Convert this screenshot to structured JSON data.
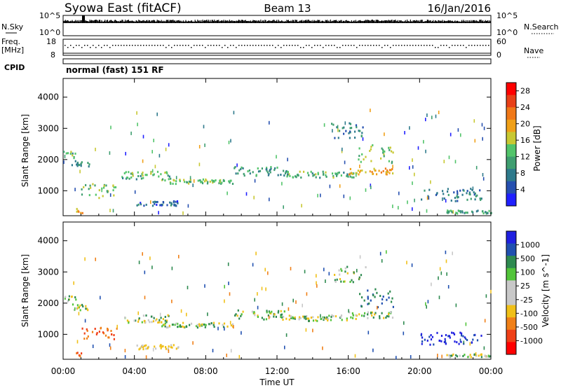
{
  "header": {
    "station": "Syowa East (fitACF)",
    "beam": "Beam 13",
    "date": "16/Jan/2016"
  },
  "status_panel": {
    "nsky_label": "N.Sky",
    "nsearch_label": "N.Search",
    "freq_label_1": "Freq.",
    "freq_label_2": "[MHz]",
    "nave_label": "Nave",
    "cpid_label": "CPID",
    "cpid_text": "normal (fast) 151 RF",
    "noise_ticks": [
      "10^5",
      "10^0"
    ],
    "freq_ticks": [
      "18",
      "8"
    ],
    "nave_ticks": [
      "60",
      "0"
    ]
  },
  "colors": {
    "power_scale": [
      "#2020ff",
      "#2650b0",
      "#2e7a8c",
      "#3f9e70",
      "#52c46a",
      "#c8c832",
      "#f0a018",
      "#f07818",
      "#e84018",
      "#ff0000"
    ],
    "velocity_scale": [
      "#2020e0",
      "#2050b0",
      "#2e8a50",
      "#52c43a",
      "#c8c8c8",
      "#c8c8c8",
      "#f0c018",
      "#f08018",
      "#f04018",
      "#ff0000"
    ]
  },
  "chart_data": [
    {
      "type": "heatmap",
      "name": "power",
      "xlabel": "",
      "ylabel": "Slant Range [km]",
      "xlim": [
        0,
        24
      ],
      "ylim": [
        200,
        4600
      ],
      "x_ticks": [
        "00:00",
        "04:00",
        "08:00",
        "12:00",
        "16:00",
        "20:00",
        "00:00"
      ],
      "y_ticks": [
        1000,
        2000,
        3000,
        4000
      ],
      "colorbar_label": "Power [dB]",
      "colorbar_ticks": [
        "4",
        "8",
        "12",
        "16",
        "20",
        "24",
        "28"
      ],
      "grid": false,
      "features": [
        {
          "t0": 0.0,
          "t1": 0.7,
          "r0": 2050,
          "r1": 2300,
          "v": 12
        },
        {
          "t0": 0.4,
          "t1": 1.5,
          "r0": 1800,
          "r1": 2000,
          "v": 8
        },
        {
          "t0": 0.7,
          "t1": 1.1,
          "r0": 300,
          "r1": 450,
          "v": 20
        },
        {
          "t0": 1.0,
          "t1": 3.0,
          "r0": 800,
          "r1": 1250,
          "v": 14
        },
        {
          "t0": 3.2,
          "t1": 6.0,
          "r0": 1400,
          "r1": 1650,
          "v": 12
        },
        {
          "t0": 4.0,
          "t1": 6.5,
          "r0": 550,
          "r1": 700,
          "v": 6
        },
        {
          "t0": 5.5,
          "t1": 9.5,
          "r0": 1250,
          "r1": 1400,
          "v": 14
        },
        {
          "t0": 9.5,
          "t1": 12.5,
          "r0": 1500,
          "r1": 1800,
          "v": 10
        },
        {
          "t0": 12.5,
          "t1": 16.5,
          "r0": 1450,
          "r1": 1650,
          "v": 12
        },
        {
          "t0": 16.0,
          "t1": 18.5,
          "r0": 1550,
          "r1": 1750,
          "v": 20
        },
        {
          "t0": 16.5,
          "t1": 18.5,
          "r0": 1900,
          "r1": 2500,
          "v": 14
        },
        {
          "t0": 15.0,
          "t1": 17.0,
          "r0": 2700,
          "r1": 3200,
          "v": 8
        },
        {
          "t0": 20.0,
          "t1": 23.5,
          "r0": 700,
          "r1": 1100,
          "v": 8
        },
        {
          "t0": 21.5,
          "t1": 24.0,
          "r0": 300,
          "r1": 400,
          "v": 10
        }
      ]
    },
    {
      "type": "heatmap",
      "name": "velocity",
      "xlabel": "Time UT",
      "ylabel": "Slant Range [km]",
      "xlim": [
        0,
        24
      ],
      "ylim": [
        200,
        4600
      ],
      "x_ticks": [
        "00:00",
        "04:00",
        "08:00",
        "12:00",
        "16:00",
        "20:00",
        "00:00"
      ],
      "y_ticks": [
        1000,
        2000,
        3000,
        4000
      ],
      "colorbar_label": "Velocity [m s^-1]",
      "colorbar_ticks": [
        "1000",
        "500",
        "100",
        "25",
        "-25",
        "-100",
        "-500",
        "-1000"
      ],
      "grid": false,
      "features": [
        {
          "t0": 0.0,
          "t1": 0.7,
          "r0": 2050,
          "r1": 2300,
          "v": 0
        },
        {
          "t0": 0.4,
          "t1": 1.5,
          "r0": 1800,
          "r1": 2000,
          "v": 0
        },
        {
          "t0": 0.7,
          "t1": 1.1,
          "r0": 300,
          "r1": 450,
          "v": -800
        },
        {
          "t0": 1.0,
          "t1": 3.0,
          "r0": 800,
          "r1": 1250,
          "v": -700
        },
        {
          "t0": 3.2,
          "t1": 6.0,
          "r0": 1400,
          "r1": 1650,
          "v": 0
        },
        {
          "t0": 4.0,
          "t1": 6.5,
          "r0": 550,
          "r1": 700,
          "v": -150
        },
        {
          "t0": 5.5,
          "t1": 9.5,
          "r0": 1250,
          "r1": 1400,
          "v": 0
        },
        {
          "t0": 9.5,
          "t1": 12.5,
          "r0": 1500,
          "r1": 1800,
          "v": 0
        },
        {
          "t0": 12.5,
          "t1": 16.5,
          "r0": 1450,
          "r1": 1650,
          "v": 0
        },
        {
          "t0": 16.0,
          "t1": 18.5,
          "r0": 1550,
          "r1": 1750,
          "v": 0
        },
        {
          "t0": 16.5,
          "t1": 18.5,
          "r0": 1900,
          "r1": 2500,
          "v": 300
        },
        {
          "t0": 15.0,
          "t1": 17.0,
          "r0": 2700,
          "r1": 3200,
          "v": 0
        },
        {
          "t0": 20.0,
          "t1": 23.5,
          "r0": 700,
          "r1": 1100,
          "v": 800
        },
        {
          "t0": 21.5,
          "t1": 24.0,
          "r0": 300,
          "r1": 400,
          "v": 0
        }
      ]
    }
  ]
}
